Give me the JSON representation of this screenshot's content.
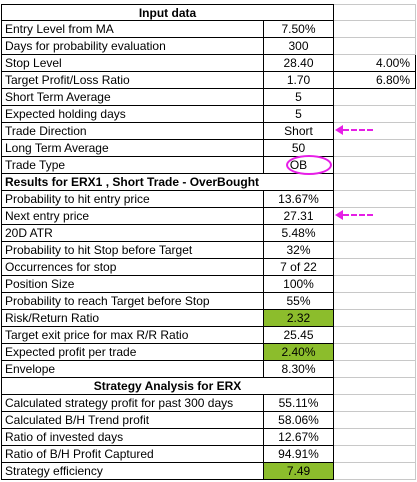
{
  "sections": {
    "input_title": "Input data",
    "results_title": "Results for ERX1 , Short Trade - OverBought",
    "strategy_title": "Strategy Analysis for ERX"
  },
  "rows": [
    {
      "label": "Entry Level from MA",
      "value": "7.50%",
      "extra": ""
    },
    {
      "label": "Days for probability evaluation",
      "value": "300",
      "extra": ""
    },
    {
      "label": "Stop Level",
      "value": "28.40",
      "extra": "4.00%"
    },
    {
      "label": "Target Profit/Loss Ratio",
      "value": "1.70",
      "extra": "6.80%"
    },
    {
      "label": "Short Term Average",
      "value": "5",
      "extra": ""
    },
    {
      "label": "Expected holding days",
      "value": "5",
      "extra": ""
    },
    {
      "label": "Trade Direction",
      "value": "Short",
      "extra": ""
    },
    {
      "label": "Long Term Average",
      "value": "50",
      "extra": ""
    },
    {
      "label": "Trade Type",
      "value": "OB",
      "extra": ""
    },
    {
      "label": "Probability to hit entry price",
      "value": "13.67%",
      "extra": ""
    },
    {
      "label": "Next entry price",
      "value": "27.31",
      "extra": ""
    },
    {
      "label": "20D ATR",
      "value": "5.48%",
      "extra": ""
    },
    {
      "label": "Probability to hit Stop before Target",
      "value": "32%",
      "extra": ""
    },
    {
      "label": "Occurrences for stop",
      "value": "7 of 22",
      "extra": ""
    },
    {
      "label": "Position Size",
      "value": "100%",
      "extra": ""
    },
    {
      "label": "Probability to reach Target before Stop",
      "value": "55%",
      "extra": ""
    },
    {
      "label": "Risk/Return Ratio",
      "value": "2.32",
      "extra": ""
    },
    {
      "label": "Target exit price for max R/R Ratio",
      "value": "25.45",
      "extra": ""
    },
    {
      "label": "Expected profit per trade",
      "value": "2.40%",
      "extra": ""
    },
    {
      "label": "Envelope",
      "value": "8.30%",
      "extra": ""
    },
    {
      "label": "Calculated strategy profit for past 300 days",
      "value": "55.11%",
      "extra": ""
    },
    {
      "label": "Calculated B/H Trend profit",
      "value": "58.06%",
      "extra": ""
    },
    {
      "label": "Ratio of invested days",
      "value": "12.67%",
      "extra": ""
    },
    {
      "label": "Ratio of B/H Profit Captured",
      "value": "94.91%",
      "extra": ""
    },
    {
      "label": "Strategy efficiency",
      "value": "7.49",
      "extra": ""
    }
  ],
  "colors": {
    "highlight_green": "#8cbd2c",
    "annotation_magenta": "#e61ee6"
  }
}
